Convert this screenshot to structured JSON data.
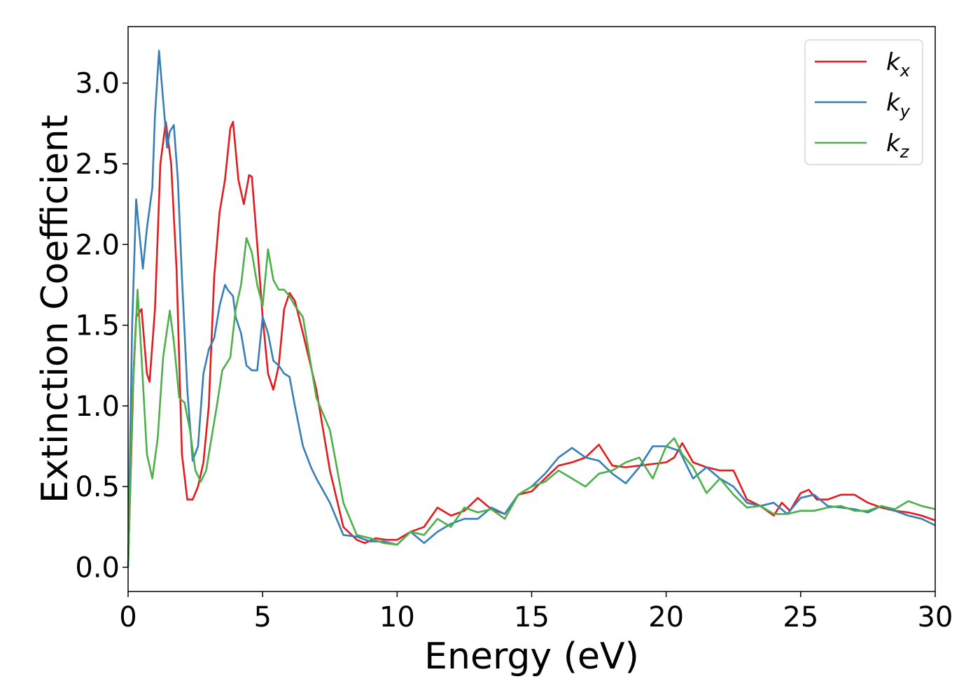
{
  "chart_data": {
    "type": "line",
    "xlabel": "Energy (eV)",
    "ylabel": "Extinction Coefficient",
    "xlim": [
      0,
      30
    ],
    "ylim": [
      -0.15,
      3.35
    ],
    "x_ticks": [
      "0",
      "5",
      "10",
      "15",
      "20",
      "25",
      "30"
    ],
    "y_ticks": [
      "0.0",
      "0.5",
      "1.0",
      "1.5",
      "2.0",
      "2.5",
      "3.0"
    ],
    "grid": false,
    "legend_position": "top-right",
    "series": [
      {
        "name": "k_x",
        "legend_main": "k",
        "legend_sub": "x",
        "color": "#e41a1c",
        "x": [
          0,
          0.2,
          0.3,
          0.5,
          0.7,
          0.8,
          1.0,
          1.2,
          1.4,
          1.6,
          1.8,
          2.0,
          2.2,
          2.4,
          2.6,
          2.8,
          3.0,
          3.2,
          3.4,
          3.6,
          3.8,
          3.9,
          4.1,
          4.3,
          4.5,
          4.6,
          4.8,
          5.0,
          5.2,
          5.4,
          5.6,
          5.8,
          6.0,
          6.2,
          6.5,
          7.0,
          7.5,
          8.0,
          8.5,
          8.8,
          9.2,
          9.6,
          10.0,
          10.5,
          11.0,
          11.5,
          12.0,
          12.5,
          13.0,
          13.5,
          14.0,
          14.5,
          15.0,
          15.5,
          16.0,
          16.5,
          17.0,
          17.5,
          18.0,
          18.5,
          19.0,
          19.5,
          20.0,
          20.3,
          20.6,
          21.0,
          21.5,
          22.0,
          22.5,
          23.0,
          23.5,
          24.0,
          24.3,
          24.6,
          25.0,
          25.3,
          25.6,
          26.0,
          26.5,
          27.0,
          27.5,
          28.0,
          28.5,
          29.0,
          29.5,
          30.0
        ],
        "y": [
          0.0,
          1.2,
          1.55,
          1.6,
          1.2,
          1.15,
          1.6,
          2.5,
          2.76,
          2.5,
          1.85,
          0.7,
          0.42,
          0.42,
          0.5,
          0.65,
          1.0,
          1.8,
          2.2,
          2.4,
          2.72,
          2.76,
          2.4,
          2.25,
          2.43,
          2.42,
          2.0,
          1.55,
          1.2,
          1.1,
          1.25,
          1.6,
          1.7,
          1.65,
          1.45,
          1.1,
          0.6,
          0.25,
          0.17,
          0.15,
          0.18,
          0.17,
          0.17,
          0.22,
          0.25,
          0.37,
          0.32,
          0.35,
          0.43,
          0.36,
          0.33,
          0.45,
          0.47,
          0.55,
          0.63,
          0.65,
          0.68,
          0.76,
          0.63,
          0.62,
          0.63,
          0.64,
          0.65,
          0.68,
          0.77,
          0.65,
          0.62,
          0.6,
          0.6,
          0.42,
          0.38,
          0.32,
          0.4,
          0.35,
          0.46,
          0.48,
          0.42,
          0.42,
          0.45,
          0.45,
          0.4,
          0.37,
          0.35,
          0.34,
          0.32,
          0.29
        ]
      },
      {
        "name": "k_y",
        "legend_main": "k",
        "legend_sub": "y",
        "color": "#377eb8",
        "x": [
          0,
          0.15,
          0.3,
          0.4,
          0.55,
          0.7,
          0.9,
          1.0,
          1.15,
          1.3,
          1.45,
          1.55,
          1.7,
          1.85,
          2.0,
          2.2,
          2.4,
          2.6,
          2.8,
          3.0,
          3.2,
          3.4,
          3.6,
          3.7,
          3.8,
          3.9,
          4.0,
          4.2,
          4.4,
          4.6,
          4.8,
          5.0,
          5.2,
          5.4,
          5.6,
          5.8,
          6.0,
          6.2,
          6.5,
          6.8,
          7.0,
          7.5,
          8.0,
          8.5,
          9.0,
          9.5,
          10.0,
          10.5,
          11.0,
          11.5,
          12.0,
          12.5,
          13.0,
          13.5,
          14.0,
          14.5,
          15.0,
          15.5,
          16.0,
          16.5,
          17.0,
          17.5,
          18.0,
          18.5,
          19.0,
          19.5,
          20.0,
          20.5,
          21.0,
          21.5,
          22.0,
          22.5,
          23.0,
          23.5,
          24.0,
          24.5,
          25.0,
          25.5,
          26.0,
          26.5,
          27.0,
          27.5,
          28.0,
          28.5,
          29.0,
          29.5,
          30.0
        ],
        "y": [
          0.0,
          1.5,
          2.28,
          2.1,
          1.85,
          2.1,
          2.35,
          2.8,
          3.2,
          2.9,
          2.6,
          2.7,
          2.74,
          2.4,
          1.8,
          1.1,
          0.66,
          0.75,
          1.2,
          1.35,
          1.42,
          1.62,
          1.75,
          1.72,
          1.7,
          1.68,
          1.55,
          1.45,
          1.25,
          1.22,
          1.22,
          1.55,
          1.45,
          1.28,
          1.25,
          1.2,
          1.18,
          1.0,
          0.75,
          0.62,
          0.55,
          0.4,
          0.2,
          0.19,
          0.16,
          0.16,
          0.14,
          0.22,
          0.15,
          0.22,
          0.27,
          0.3,
          0.3,
          0.37,
          0.33,
          0.45,
          0.5,
          0.58,
          0.68,
          0.74,
          0.68,
          0.66,
          0.58,
          0.52,
          0.62,
          0.75,
          0.75,
          0.72,
          0.55,
          0.62,
          0.55,
          0.5,
          0.4,
          0.38,
          0.4,
          0.33,
          0.43,
          0.45,
          0.38,
          0.37,
          0.36,
          0.34,
          0.38,
          0.35,
          0.32,
          0.3,
          0.26
        ]
      },
      {
        "name": "k_z",
        "legend_main": "k",
        "legend_sub": "z",
        "color": "#4daf4a",
        "x": [
          0,
          0.15,
          0.35,
          0.5,
          0.7,
          0.9,
          1.1,
          1.3,
          1.55,
          1.7,
          1.9,
          2.1,
          2.3,
          2.5,
          2.7,
          2.9,
          3.1,
          3.3,
          3.5,
          3.8,
          4.0,
          4.2,
          4.4,
          4.6,
          4.8,
          5.0,
          5.2,
          5.4,
          5.6,
          5.8,
          6.0,
          6.2,
          6.5,
          7.0,
          7.5,
          8.0,
          8.5,
          9.0,
          9.5,
          10.0,
          10.5,
          11.0,
          11.5,
          12.0,
          12.5,
          13.0,
          13.5,
          14.0,
          14.5,
          15.0,
          15.5,
          16.0,
          16.5,
          17.0,
          17.5,
          18.0,
          18.5,
          19.0,
          19.5,
          20.0,
          20.3,
          20.6,
          21.0,
          21.5,
          22.0,
          22.5,
          23.0,
          23.5,
          24.0,
          24.5,
          25.0,
          25.5,
          26.0,
          26.5,
          27.0,
          27.5,
          28.0,
          28.5,
          29.0,
          29.5,
          30.0
        ],
        "y": [
          0.0,
          1.0,
          1.72,
          1.3,
          0.7,
          0.55,
          0.8,
          1.3,
          1.59,
          1.4,
          1.05,
          1.02,
          0.85,
          0.6,
          0.53,
          0.6,
          0.8,
          1.0,
          1.22,
          1.3,
          1.6,
          1.75,
          2.04,
          1.95,
          1.75,
          1.62,
          1.97,
          1.78,
          1.72,
          1.72,
          1.68,
          1.62,
          1.55,
          1.05,
          0.85,
          0.4,
          0.2,
          0.18,
          0.15,
          0.14,
          0.22,
          0.2,
          0.3,
          0.25,
          0.37,
          0.34,
          0.36,
          0.3,
          0.45,
          0.5,
          0.53,
          0.6,
          0.55,
          0.5,
          0.58,
          0.6,
          0.65,
          0.68,
          0.55,
          0.75,
          0.8,
          0.7,
          0.62,
          0.46,
          0.55,
          0.45,
          0.37,
          0.38,
          0.33,
          0.33,
          0.35,
          0.35,
          0.37,
          0.38,
          0.35,
          0.35,
          0.38,
          0.36,
          0.41,
          0.38,
          0.36
        ]
      }
    ]
  }
}
